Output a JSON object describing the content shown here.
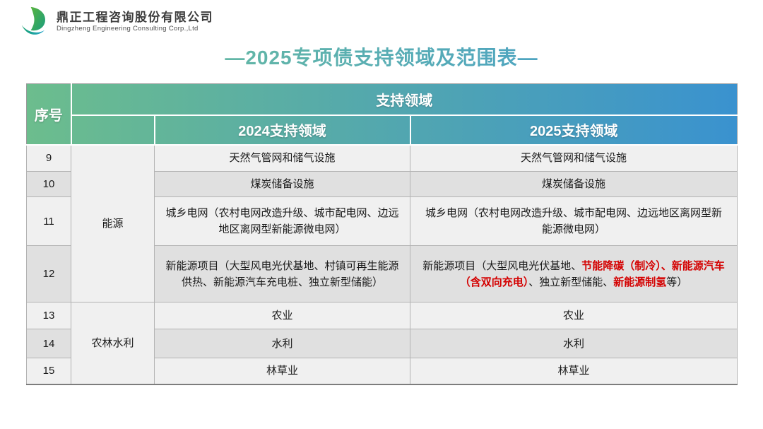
{
  "logo": {
    "company_name_zh": "鼎正工程咨询股份有限公司",
    "company_name_en": "Dingzheng Engineering Consulting Corp.,Ltd"
  },
  "title": "—2025专项债支持领域及范围表—",
  "colors": {
    "title_gradient_start": "#72c493",
    "title_gradient_end": "#3f97d3",
    "header_gradient_start": "#6cbd8d",
    "header_gradient_end": "#3a92cf",
    "row_light": "#f0f0f0",
    "row_dark": "#e0e0e0",
    "highlight_red": "#d40000"
  },
  "table": {
    "headers": {
      "col_index": "序号",
      "support_area_group": "支持领域",
      "col_2024": "2024支持领域",
      "col_2025": "2025支持领域"
    },
    "rows": [
      {
        "no": "9",
        "category": {
          "name": "能源",
          "rowspan": 4
        },
        "y2024": [
          {
            "t": "天然气管网和储气设施"
          }
        ],
        "y2025": [
          {
            "t": "天然气管网和储气设施"
          }
        ]
      },
      {
        "no": "10",
        "y2024": [
          {
            "t": "煤炭储备设施"
          }
        ],
        "y2025": [
          {
            "t": "煤炭储备设施"
          }
        ]
      },
      {
        "no": "11",
        "y2024": [
          {
            "t": "城乡电网（农村电网改造升级、城市配电网、边远地区离网型新能源微电网）"
          }
        ],
        "y2025": [
          {
            "t": "城乡电网（农村电网改造升级、城市配电网、边远地区离网型新能源微电网）"
          }
        ]
      },
      {
        "no": "12",
        "y2024": [
          {
            "t": "新能源项目（大型风电光伏基地、村镇可再生能源供热、新能源汽车充电桩、独立新型储能）"
          }
        ],
        "y2025": [
          {
            "t": "新能源项目（大型风电光伏基地、"
          },
          {
            "t": "节能降碳（制冷）、新能源汽车（含双向充电）",
            "red": true
          },
          {
            "t": "、独立新型储能、"
          },
          {
            "t": "新能源制氢",
            "red": true
          },
          {
            "t": "等）"
          }
        ]
      },
      {
        "no": "13",
        "category": {
          "name": "农林水利",
          "rowspan": 3
        },
        "y2024": [
          {
            "t": "农业"
          }
        ],
        "y2025": [
          {
            "t": "农业"
          }
        ]
      },
      {
        "no": "14",
        "y2024": [
          {
            "t": "水利"
          }
        ],
        "y2025": [
          {
            "t": "水利"
          }
        ]
      },
      {
        "no": "15",
        "y2024": [
          {
            "t": "林草业"
          }
        ],
        "y2025": [
          {
            "t": "林草业"
          }
        ]
      }
    ]
  }
}
